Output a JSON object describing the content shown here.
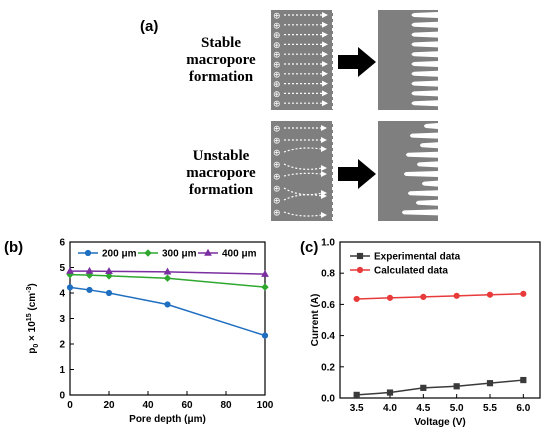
{
  "panel_a": {
    "label": "(a)",
    "rows": [
      {
        "lines": [
          "Stable",
          "macropore",
          "formation"
        ]
      },
      {
        "lines": [
          "Unstable",
          "macropore",
          "formation"
        ]
      }
    ],
    "hole_symbol": "⊕",
    "colors": {
      "substrate": "#7f7f7f",
      "arrow": "#000000",
      "path": "#ffffff"
    }
  },
  "chart_data": [
    {
      "type": "line",
      "panel_label": "(b)",
      "title": "",
      "xlabel": "Pore depth (μm)",
      "ylabel_parts": {
        "base": "p",
        "sub": "0",
        "mid": " × 10",
        "sup1": "15",
        "unit_open": " (cm",
        "sup2": "-3",
        "unit_close": ")"
      },
      "xlim": [
        0,
        100
      ],
      "ylim": [
        0,
        6
      ],
      "xticks": [
        "0",
        "20",
        "40",
        "60",
        "80",
        "100"
      ],
      "yticks": [
        "0",
        "1",
        "2",
        "3",
        "4",
        "5",
        "6"
      ],
      "legend_position": "top",
      "series": [
        {
          "name": "200 μm",
          "color": "#1f6fc0",
          "marker": "circle",
          "x": [
            0,
            10,
            20,
            50,
            100
          ],
          "y": [
            4.22,
            4.12,
            4.0,
            3.55,
            2.33
          ]
        },
        {
          "name": "300 μm",
          "color": "#2ea82e",
          "marker": "diamond",
          "x": [
            0,
            10,
            20,
            50,
            100
          ],
          "y": [
            4.72,
            4.7,
            4.67,
            4.58,
            4.23
          ]
        },
        {
          "name": "400 μm",
          "color": "#7b2fa0",
          "marker": "triangle",
          "x": [
            0,
            10,
            20,
            50,
            100
          ],
          "y": [
            4.86,
            4.86,
            4.85,
            4.83,
            4.74
          ]
        }
      ]
    },
    {
      "type": "line",
      "panel_label": "(c)",
      "title": "",
      "xlabel": "Voltage (V)",
      "ylabel": "Current (A)",
      "xlim": [
        3.25,
        6.25
      ],
      "ylim": [
        0,
        1.0
      ],
      "xticks": [
        "3.5",
        "4.0",
        "4.5",
        "5.0",
        "5.5",
        "6.0"
      ],
      "yticks": [
        "0.0",
        "0.2",
        "0.4",
        "0.6",
        "0.8",
        "1.0"
      ],
      "legend_position": "top-left",
      "series": [
        {
          "name": "Experimental data",
          "color": "#3a3a3a",
          "marker": "square",
          "x": [
            3.5,
            4.0,
            4.5,
            5.0,
            5.5,
            6.0
          ],
          "y": [
            0.02,
            0.035,
            0.065,
            0.075,
            0.095,
            0.115
          ]
        },
        {
          "name": "Calculated data",
          "color": "#e83a3a",
          "marker": "circle",
          "x": [
            3.5,
            4.0,
            4.5,
            5.0,
            5.5,
            6.0
          ],
          "y": [
            0.635,
            0.642,
            0.648,
            0.655,
            0.662,
            0.668
          ]
        }
      ]
    }
  ]
}
